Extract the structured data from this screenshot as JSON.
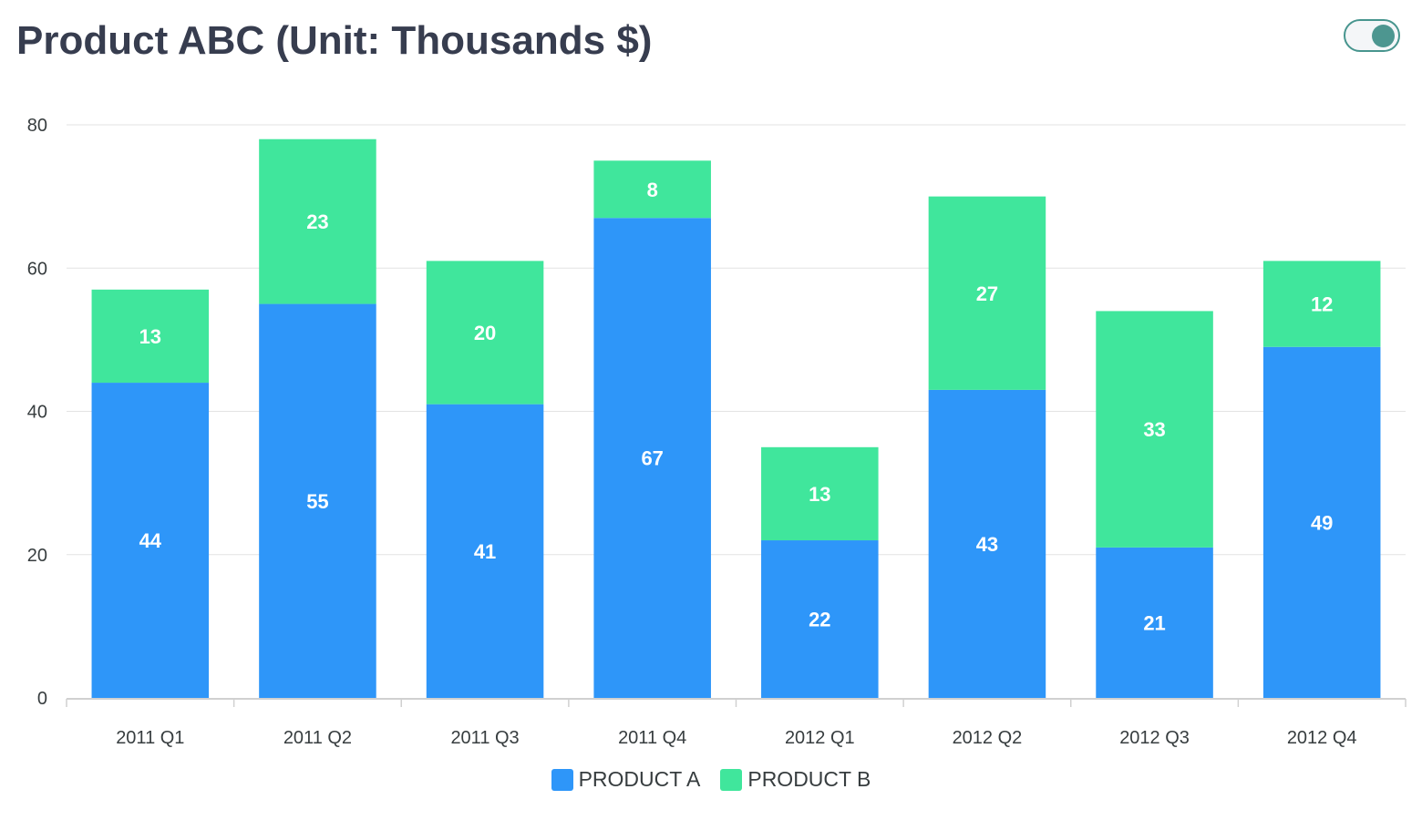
{
  "header": {
    "title": "Product ABC (Unit: Thousands $)"
  },
  "toggle": {
    "state": "on"
  },
  "colors": {
    "product_a": "#2e96f9",
    "product_b": "#40e69c",
    "grid": "#e3e3e3",
    "axis": "#d0d0d0"
  },
  "chart_data": {
    "type": "bar",
    "stacked": true,
    "title": "Product ABC (Unit: Thousands $)",
    "categories": [
      "2011 Q1",
      "2011 Q2",
      "2011 Q3",
      "2011 Q4",
      "2012 Q1",
      "2012 Q2",
      "2012 Q3",
      "2012 Q4"
    ],
    "series": [
      {
        "name": "PRODUCT A",
        "color": "#2e96f9",
        "values": [
          44,
          55,
          41,
          67,
          22,
          43,
          21,
          49
        ]
      },
      {
        "name": "PRODUCT B",
        "color": "#40e69c",
        "values": [
          13,
          23,
          20,
          8,
          13,
          27,
          33,
          12
        ]
      }
    ],
    "ylim": [
      0,
      80
    ],
    "yticks": [
      0,
      20,
      40,
      60,
      80
    ],
    "grid": true,
    "legend_position": "bottom",
    "data_labels": true
  }
}
